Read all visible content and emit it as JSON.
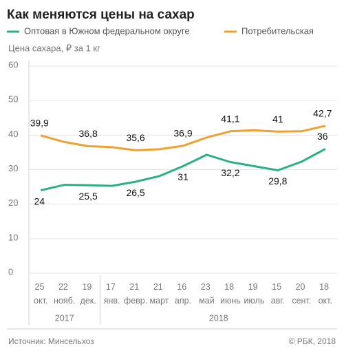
{
  "chart_data": {
    "type": "line",
    "title": "Как меняются цены на сахар",
    "y_label": "Цена сахара, ₽ за 1 кг",
    "categories": [
      "25 окт.",
      "22 нояб.",
      "19 дек.",
      "17 янв.",
      "21 февр.",
      "21 март",
      "16 апр.",
      "23 май",
      "18 июнь",
      "19 июль",
      "15 авг.",
      "20 сент.",
      "18 окт."
    ],
    "years": [
      "2017",
      "2017",
      "2017",
      "2018",
      "2018",
      "2018",
      "2018",
      "2018",
      "2018",
      "2018",
      "2018",
      "2018",
      "2018"
    ],
    "series": [
      {
        "name": "Оптовая в Южном федеральном округе",
        "color": "#2bb086",
        "values": [
          24,
          25.6,
          25.5,
          25.3,
          26.5,
          28.1,
          31,
          34.3,
          32.2,
          31,
          29.8,
          32.3,
          36
        ],
        "value_labels": [
          "24",
          null,
          "25,5",
          null,
          "26,5",
          null,
          "31",
          null,
          "32,2",
          null,
          "29,8",
          null,
          "36"
        ]
      },
      {
        "name": "Потребительская",
        "color": "#f0a030",
        "values": [
          39.9,
          38,
          36.8,
          36.5,
          35.6,
          35.9,
          36.9,
          39.3,
          41.1,
          41.4,
          41,
          41.1,
          42.7
        ],
        "value_labels": [
          "39,9",
          null,
          "36,8",
          null,
          "35,6",
          null,
          "36,9",
          null,
          "41,1",
          null,
          "41",
          null,
          "42,7"
        ]
      }
    ],
    "ylim": [
      0,
      60
    ],
    "yticks": [
      0,
      10,
      20,
      30,
      40,
      50,
      60
    ],
    "grid": true,
    "source": "Источник: Минсельхоз",
    "copyright": "© РБК, 2018"
  }
}
